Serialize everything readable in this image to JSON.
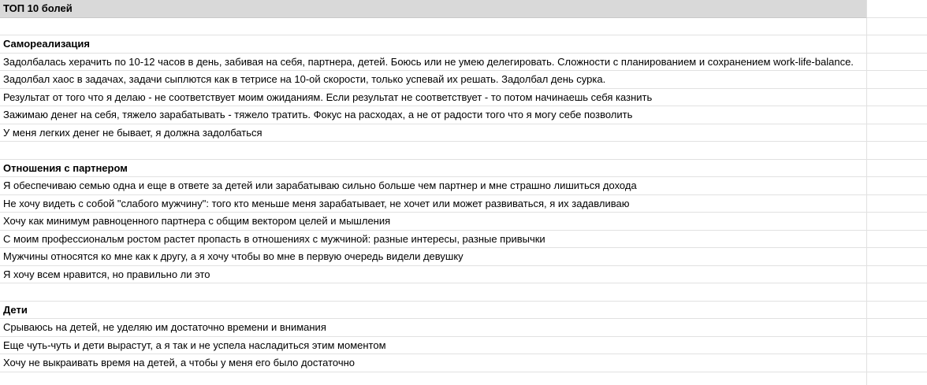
{
  "spreadsheet": {
    "title_row": "ТОП 10 болей",
    "colors": {
      "header_bg": "#d9d9d9",
      "grid_line": "#e1e1e1",
      "text": "#000000",
      "background": "#ffffff"
    },
    "sections": [
      {
        "header": "Самореализация",
        "rows": [
          "Задолбалась херачить по 10-12 часов в день, забивая на себя, партнера, детей. Боюсь или не умею делегировать. Сложности с планированием и сохранением work-life-balance.",
          "Задолбал хаос в задачах, задачи сыплются как в тетрисе на 10-ой скорости, только успевай их решать. Задолбал день сурка.",
          "Результат от того что я делаю - не соответствует моим ожиданиям. Если результат не соответствует - то потом начинаешь себя казнить",
          "Зажимаю денег на себя, тяжело зарабатывать - тяжело тратить. Фокус на расходах, а не от радости того что я могу себе позволить",
          "У меня легких денег не бывает, я должна задолбаться"
        ]
      },
      {
        "header": "Отношения с партнером",
        "rows": [
          "Я обеспечиваю семью одна и еще в ответе за детей или зарабатываю сильно больше чем партнер и мне страшно лишиться дохода",
          "Не хочу видеть с собой \"слабого мужчину\": того кто меньше меня зарабатывает, не хочет или может развиваться, я их задавливаю",
          "Хочу как минимум равноценного партнера с общим вектором целей и мышления",
          "С моим профессиональм ростом растет пропасть в отношениях с мужчиной: разные интересы, разные привычки",
          "Мужчины относятся ко мне как к другу, а я хочу чтобы во мне в первую очередь видели девушку",
          "Я хочу всем нравится, но правильно ли это"
        ]
      },
      {
        "header": "Дети",
        "rows": [
          "Срываюсь на детей, не уделяю им достаточно времени и внимания",
          "Еще чуть-чуть и дети вырастут, а я так и не успела насладиться этим моментом",
          "Хочу не выкраивать время на детей, а чтобы у меня его было достаточно"
        ]
      }
    ]
  }
}
